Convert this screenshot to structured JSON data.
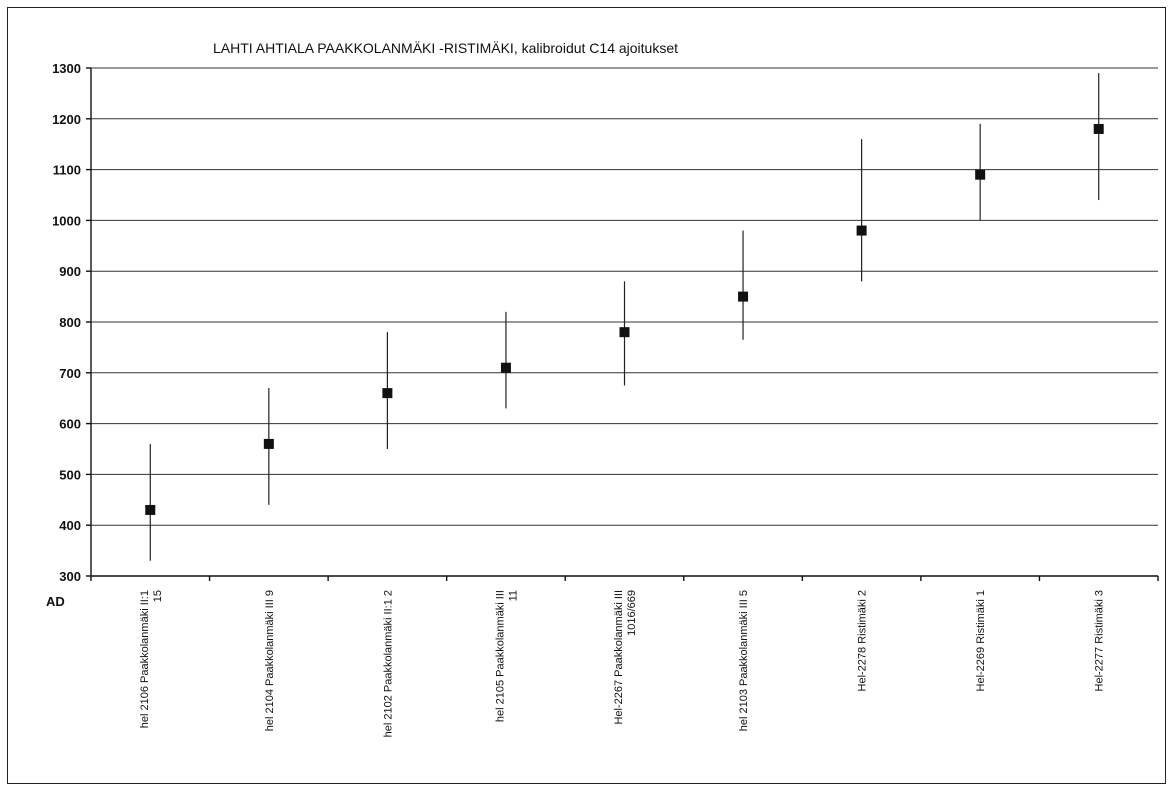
{
  "chart_data": {
    "type": "scatter",
    "title": "LAHTI AHTIALA PAAKKOLANMÄKI -RISTIMÄKI, kalibroidut C14 ajoitukset",
    "ylabel": "AD",
    "ylim": [
      300,
      1300
    ],
    "yticks": [
      300,
      400,
      500,
      600,
      700,
      800,
      900,
      1000,
      1100,
      1200,
      1300
    ],
    "grid": true,
    "error_bars": true,
    "categories": [
      [
        "hel 2106 Paakkolanmäki II:1",
        "15"
      ],
      [
        "hel 2104 Paakkolanmäki III 9"
      ],
      [
        "hel 2102 Paakkolanmäki II:1 2"
      ],
      [
        "hel 2105 Paakkolanmäki III",
        "11"
      ],
      [
        "Hel-2267 Paakkolanmäki III",
        "1016/669"
      ],
      [
        "hel 2103 Paakkolanmäki III 5"
      ],
      [
        "Hel-2278 Ristimäki 2"
      ],
      [
        "Hel-2269 Ristimäki 1"
      ],
      [
        "Hel-2277 Ristimäki 3"
      ]
    ],
    "values": [
      430,
      560,
      660,
      710,
      780,
      850,
      980,
      1090,
      1180
    ],
    "lower": [
      330,
      440,
      550,
      630,
      675,
      765,
      880,
      1000,
      1040
    ],
    "upper": [
      560,
      670,
      780,
      820,
      880,
      980,
      1160,
      1190,
      1290
    ]
  }
}
